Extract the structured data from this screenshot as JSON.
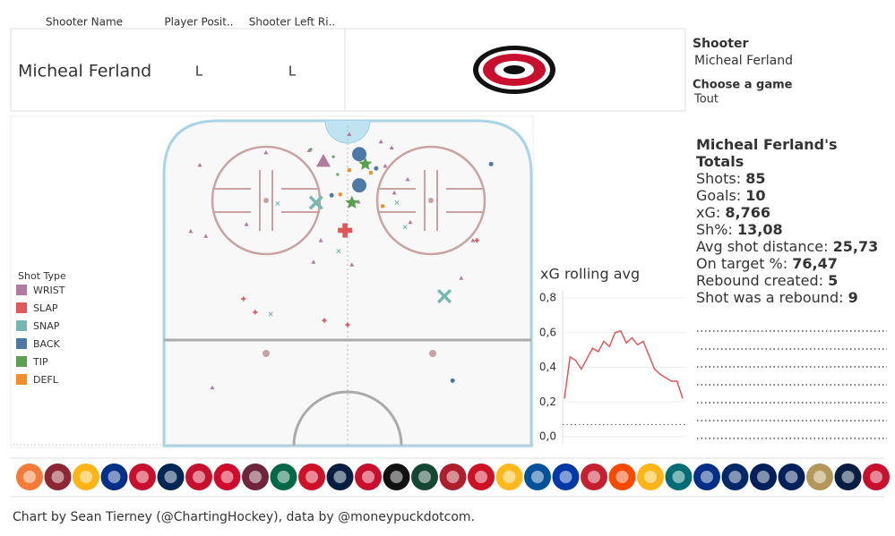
{
  "header": {
    "columns": [
      "Shooter Name",
      "Player Posit..",
      "Shooter Left Ri.."
    ],
    "row": [
      "Micheal Ferland",
      "L",
      "L"
    ]
  },
  "filters": {
    "shooter_label": "Shooter",
    "shooter": "Micheal Ferland",
    "game_label": "Choose a game",
    "game": "Tout"
  },
  "totals": {
    "title": "Micheal Ferland's Totals",
    "rows": [
      {
        "label": "Shots:",
        "value": "85"
      },
      {
        "label": "Goals:",
        "value": "10"
      },
      {
        "label": "xG:",
        "value": "8,766"
      },
      {
        "label": "Sh%:",
        "value": "13,08"
      },
      {
        "label": "Avg shot distance:",
        "value": "25,73"
      },
      {
        "label": "On target %:",
        "value": "76,47"
      },
      {
        "label": "Rebound created:",
        "value": "5"
      },
      {
        "label": "Shot was a rebound:",
        "value": "9"
      }
    ]
  },
  "footer": "Chart by Sean Tierney (@ChartingHockey), data by @moneypuckdotcom.",
  "chart_data": [
    {
      "type": "scatter",
      "legend_title": "Shot Type",
      "xlim": [
        -42.5,
        42.5
      ],
      "ylim": [
        0,
        75
      ],
      "series": [
        {
          "name": "WRIST",
          "color": "#b07aa1",
          "marker": "triangle",
          "x": [
            -5.6,
            -18.9,
            -34.2,
            -8.9,
            0.4,
            7.7,
            10.2,
            8.7,
            13.9,
            10.8,
            2.5,
            -23.4,
            -36.3,
            -32.8,
            -6.2,
            -7.9,
            1.0,
            14.5,
            29.0,
            26.3,
            -31.3
          ],
          "y": [
            9.3,
            7.3,
            10.2,
            6.8,
            3.1,
            4.8,
            6.2,
            10.4,
            13.5,
            16.6,
            18.7,
            23.9,
            25.5,
            26.6,
            27.6,
            32.6,
            33.2,
            23.4,
            27.6,
            36.3,
            61.6
          ],
          "sizes": [
            3,
            1,
            1,
            1,
            1,
            1,
            1,
            1,
            1,
            1,
            1,
            1,
            1,
            1,
            1,
            1,
            1,
            1,
            1,
            1,
            1
          ]
        },
        {
          "name": "SLAP",
          "color": "#e15759",
          "marker": "plus",
          "x": [
            -0.6,
            29.9,
            -24.1,
            -21.4,
            -5.4,
            0
          ],
          "y": [
            25.3,
            27.6,
            41.1,
            44.2,
            46.1,
            47.1
          ],
          "sizes": [
            3,
            1,
            1,
            1,
            1,
            1
          ]
        },
        {
          "name": "SNAP",
          "color": "#76b7b2",
          "marker": "cross",
          "x": [
            -7.3,
            22.4,
            -16.2,
            13.3,
            -2.1,
            -17.8,
            11.4
          ],
          "y": [
            18.9,
            40.5,
            19.1,
            24.5,
            30.1,
            44.6,
            18.9
          ],
          "sizes": [
            3,
            3,
            1,
            1,
            1,
            1,
            1
          ]
        },
        {
          "name": "BACK",
          "color": "#4e79a7",
          "marker": "circle",
          "x": [
            2.7,
            2.7,
            33.2,
            6.6,
            24.3,
            -3.7
          ],
          "y": [
            7.7,
            14.9,
            10.0,
            11.0,
            60.0,
            17.2
          ],
          "sizes": [
            3,
            3,
            1,
            1,
            1,
            1
          ]
        },
        {
          "name": "TIP",
          "color": "#59a14f",
          "marker": "star",
          "x": [
            4.1,
            1.0,
            -8.5,
            -3.3,
            -2.3
          ],
          "y": [
            10.0,
            18.9,
            6.6,
            8.3,
            12.4
          ],
          "sizes": [
            3,
            3,
            1,
            1,
            1
          ]
        },
        {
          "name": "DEFL",
          "color": "#f28e2b",
          "marker": "square",
          "x": [
            5.4,
            -1.7,
            8.1,
            0.4
          ],
          "y": [
            12.0,
            17.0,
            19.7,
            11.4
          ],
          "sizes": [
            1,
            1,
            1,
            1
          ]
        }
      ]
    },
    {
      "type": "line",
      "title": "xG rolling avg",
      "color": "#e15759",
      "x": [
        1,
        2,
        3,
        4,
        5,
        6,
        7,
        8,
        9,
        10,
        11,
        12,
        13,
        14,
        15,
        16,
        17,
        18,
        19,
        20,
        21,
        22
      ],
      "values": [
        0.22,
        0.46,
        0.44,
        0.39,
        0.45,
        0.51,
        0.49,
        0.55,
        0.52,
        0.6,
        0.61,
        0.54,
        0.57,
        0.53,
        0.55,
        0.47,
        0.39,
        0.36,
        0.34,
        0.32,
        0.32,
        0.22
      ],
      "xlim": [
        1,
        22
      ],
      "ylim": [
        0,
        0.8
      ],
      "reference": 0.07,
      "grid": true,
      "yticks": [
        {
          "value": 0,
          "label": "0,0"
        },
        {
          "value": 0.2,
          "label": "0,2"
        },
        {
          "value": 0.4,
          "label": "0,4"
        },
        {
          "value": 0.6,
          "label": "0,6"
        },
        {
          "value": 0.8,
          "label": "0,8"
        }
      ]
    }
  ]
}
